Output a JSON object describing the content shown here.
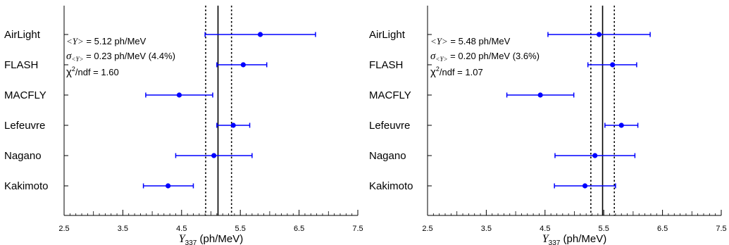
{
  "chart_data": [
    {
      "type": "scatter",
      "categories": [
        "AirLight",
        "FLASH",
        "MACFLY",
        "Lefeuvre",
        "Nagano",
        "Kakimoto"
      ],
      "values": [
        5.84,
        5.55,
        4.46,
        5.38,
        5.05,
        4.27
      ],
      "errors_low": [
        0.94,
        0.45,
        0.57,
        0.28,
        0.65,
        0.42
      ],
      "errors_high": [
        0.94,
        0.4,
        0.57,
        0.28,
        0.65,
        0.43
      ],
      "mean": 5.12,
      "band": [
        4.91,
        5.35
      ],
      "xlim": [
        2.5,
        7.5
      ],
      "xticks": [
        "2.5",
        "3.5",
        "4.5",
        "5.5",
        "6.5",
        "7.5"
      ],
      "xlabel": {
        "symbol": "Y",
        "sub": "337",
        "unit": " (ph/MeV)"
      },
      "stats": {
        "mean": {
          "lhs": "<Y>",
          "rhs": " = 5.12 ph/MeV"
        },
        "sigma": {
          "sym": "σ",
          "sub": "<Y>",
          "rhs": " = 0.23 ph/MeV (4.4%)"
        },
        "chi": {
          "lhs": "χ",
          "sup": "2",
          "rhs": "/ndf  = 1.60"
        }
      },
      "point_color": "#0000ff",
      "grid": false
    },
    {
      "type": "scatter",
      "categories": [
        "AirLight",
        "FLASH",
        "MACFLY",
        "Lefeuvre",
        "Nagano",
        "Kakimoto"
      ],
      "values": [
        5.42,
        5.65,
        4.42,
        5.8,
        5.35,
        5.18
      ],
      "errors_low": [
        0.87,
        0.42,
        0.57,
        0.28,
        0.68,
        0.52
      ],
      "errors_high": [
        0.87,
        0.41,
        0.57,
        0.28,
        0.68,
        0.52
      ],
      "mean": 5.48,
      "band": [
        5.28,
        5.68
      ],
      "xlim": [
        2.5,
        7.5
      ],
      "xticks": [
        "2.5",
        "3.5",
        "4.5",
        "5.5",
        "6.5",
        "7.5"
      ],
      "xlabel": {
        "symbol": "Y",
        "sub": "337",
        "unit": " (ph/MeV)"
      },
      "stats": {
        "mean": {
          "lhs": "<Y>",
          "rhs": " = 5.48 ph/MeV"
        },
        "sigma": {
          "sym": "σ",
          "sub": "<Y>",
          "rhs": " = 0.20 ph/MeV (3.6%)"
        },
        "chi": {
          "lhs": "χ",
          "sup": "2",
          "rhs": "/ndf  = 1.07"
        }
      },
      "point_color": "#0000ff",
      "grid": false
    }
  ]
}
